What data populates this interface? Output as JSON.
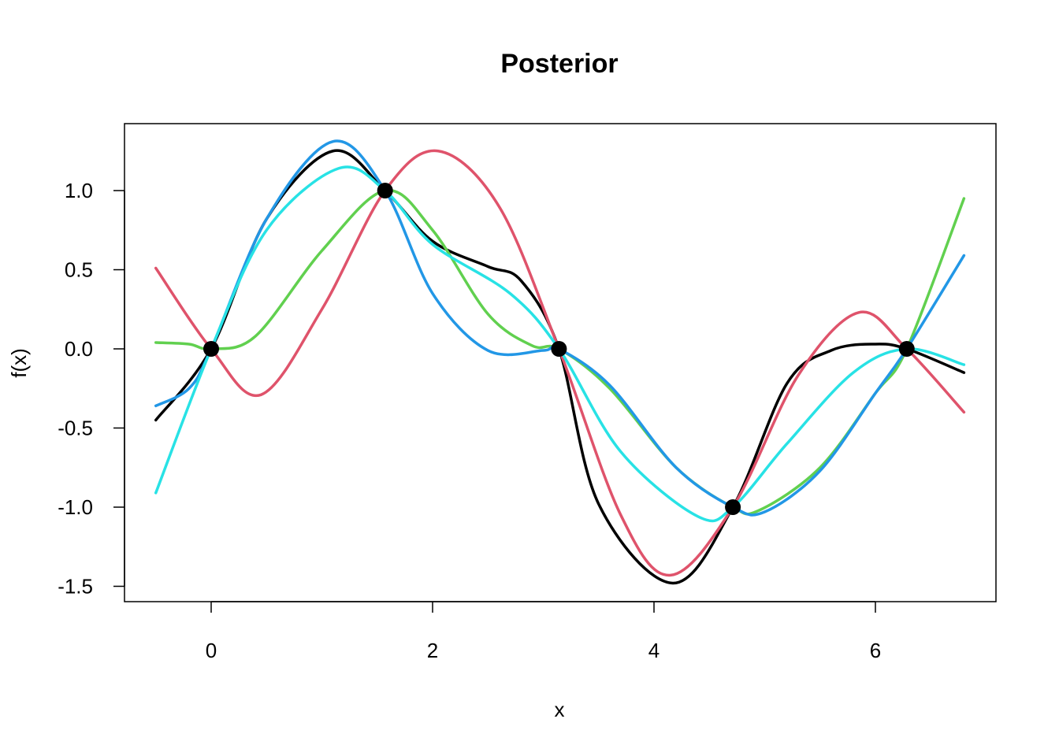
{
  "chart_data": {
    "type": "line",
    "title": "Posterior",
    "xlabel": "x",
    "ylabel": "f(x)",
    "xlim": [
      -0.5,
      6.8
    ],
    "ylim": [
      -1.55,
      1.35
    ],
    "xticks": [
      0,
      2,
      4,
      6
    ],
    "xtick_labels": [
      "0",
      "2",
      "4",
      "6"
    ],
    "yticks": [
      -1.5,
      -1.0,
      -0.5,
      0.0,
      0.5,
      1.0
    ],
    "ytick_labels": [
      "-1.5",
      "-1.0",
      "-0.5",
      "0.0",
      "0.5",
      "1.0"
    ],
    "grid": false,
    "legend": "none",
    "series": [
      {
        "color": "#000000",
        "x": [
          -0.5,
          0,
          0.5,
          1.1,
          1.5708,
          2.0,
          2.5,
          2.8,
          3.1416,
          3.5,
          4.17,
          4.7124,
          5.2,
          5.6,
          6.0,
          6.2832,
          6.8
        ],
        "y": [
          -0.45,
          0.0,
          0.82,
          1.25,
          1.0,
          0.68,
          0.52,
          0.43,
          0.0,
          -0.98,
          -1.48,
          -1.0,
          -0.22,
          -0.01,
          0.03,
          0.0,
          -0.15
        ]
      },
      {
        "color": "#DF536B",
        "x": [
          -0.5,
          0,
          0.45,
          1.0,
          1.5708,
          2.05,
          2.6,
          3.1416,
          3.7,
          4.15,
          4.7124,
          5.3,
          5.85,
          6.2832,
          6.8
        ],
        "y": [
          0.51,
          0.0,
          -0.29,
          0.25,
          1.0,
          1.25,
          0.9,
          0.0,
          -1.05,
          -1.43,
          -1.0,
          -0.17,
          0.23,
          0.0,
          -0.4
        ]
      },
      {
        "color": "#61D04F",
        "x": [
          -0.5,
          -0.2,
          0,
          0.4,
          1.0,
          1.5708,
          2.0,
          2.5,
          2.9,
          3.1416,
          3.6,
          4.2,
          4.7124,
          4.95,
          5.5,
          6.0,
          6.2832,
          6.8
        ],
        "y": [
          0.04,
          0.03,
          0.0,
          0.08,
          0.62,
          1.0,
          0.75,
          0.22,
          0.02,
          0.0,
          -0.25,
          -0.75,
          -1.0,
          -1.02,
          -0.75,
          -0.28,
          0.0,
          0.95
        ]
      },
      {
        "color": "#2297E6",
        "x": [
          -0.5,
          -0.2,
          0,
          0.5,
          1.1,
          1.5708,
          2.0,
          2.5,
          3.0,
          3.1416,
          3.6,
          4.2,
          4.7124,
          5.0,
          5.5,
          6.0,
          6.2832,
          6.8
        ],
        "y": [
          -0.36,
          -0.25,
          0.0,
          0.82,
          1.31,
          1.0,
          0.35,
          -0.01,
          -0.01,
          0.0,
          -0.23,
          -0.75,
          -1.0,
          -1.03,
          -0.77,
          -0.28,
          0.0,
          0.59
        ]
      },
      {
        "color": "#28E2E5",
        "x": [
          -0.5,
          0,
          0.5,
          1.15,
          1.5708,
          2.0,
          2.7,
          3.1416,
          3.7,
          4.4,
          4.7124,
          5.2,
          5.8,
          6.2832,
          6.8
        ],
        "y": [
          -0.91,
          0.0,
          0.75,
          1.14,
          1.0,
          0.66,
          0.35,
          0.0,
          -0.65,
          -1.06,
          -1.0,
          -0.6,
          -0.15,
          0.0,
          -0.1
        ]
      }
    ],
    "points": {
      "color": "#000000",
      "x": [
        0,
        1.5708,
        3.1416,
        4.7124,
        6.2832
      ],
      "y": [
        0.0,
        1.0,
        0.0,
        -1.0,
        0.0
      ]
    }
  }
}
